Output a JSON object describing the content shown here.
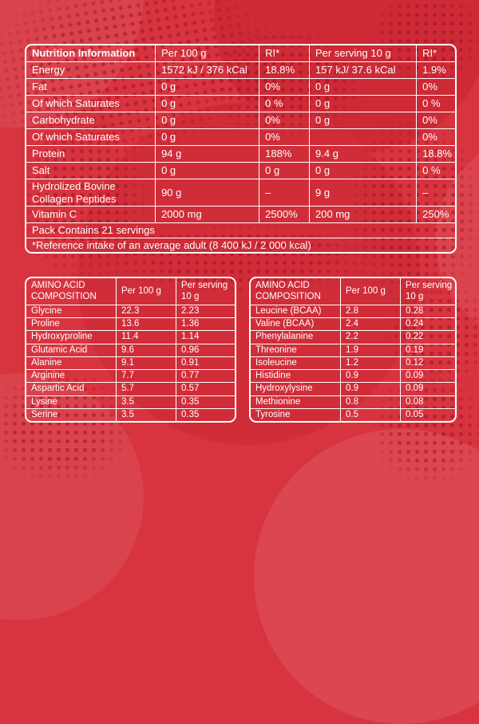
{
  "colors": {
    "background_red": "#d7343f",
    "dark_circle_red": "#cd2a36",
    "light_circle_red": "#dc4650",
    "halftone_dot_red": "#960e1e",
    "table_border": "#ffffff",
    "text": "#ffffff"
  },
  "nutrition_table": {
    "headers": [
      "Nutrition Information",
      "Per 100 g",
      "RI*",
      "Per serving 10 g",
      "RI*"
    ],
    "rows": [
      [
        "Energy",
        "1572 kJ / 376 kCal",
        "18.8%",
        "157 kJ/ 37.6 kCal",
        "1.9%"
      ],
      [
        "Fat",
        "0 g",
        "0%",
        "0 g",
        "0%"
      ],
      [
        "Of which Saturates",
        "0 g",
        "0 %",
        "0 g",
        "0 %"
      ],
      [
        "Carbohydrate",
        "0 g",
        "0%",
        "0 g",
        "0%"
      ],
      [
        "Of which Saturates",
        "0 g",
        "0%",
        "",
        "0%"
      ],
      [
        "Protein",
        "94 g",
        "188%",
        "9.4 g",
        "18.8%"
      ],
      [
        "Salt",
        "0 g",
        "0 g",
        "0 g",
        "0 %"
      ],
      [
        "Hydrolized Bovine Collagen Peptides",
        "90 g",
        "–",
        "9 g",
        "–"
      ],
      [
        "Vitamin C",
        "2000 mg",
        "2500%",
        "200 mg",
        "250%"
      ]
    ],
    "footer_rows": [
      "Pack Contains 21 servings",
      "*Reference intake of an average adult (8 400 kJ / 2 000 kcal)"
    ]
  },
  "amino_left": {
    "headers": [
      "AMINO ACID COMPOSITION",
      "Per 100 g",
      "Per serving 10 g"
    ],
    "rows": [
      [
        "Glycine",
        "22.3",
        "2.23"
      ],
      [
        "Proline",
        "13.6",
        "1.36"
      ],
      [
        "Hydroxyproline",
        "11.4",
        "1.14"
      ],
      [
        "Glutamic Acid",
        "9.6",
        "0.96"
      ],
      [
        "Alanine",
        "9.1",
        "0.91"
      ],
      [
        "Arginine",
        "7.7",
        "0.77"
      ],
      [
        "Aspartic Acid",
        "5.7",
        "0.57"
      ],
      [
        "Lysine",
        "3.5",
        "0.35"
      ],
      [
        "Serine",
        "3.5",
        "0.35"
      ]
    ]
  },
  "amino_right": {
    "headers": [
      "AMINO ACID COMPOSITION",
      "Per 100 g",
      "Per serving 10 g"
    ],
    "rows": [
      [
        "Leucine (BCAA)",
        "2.8",
        "0.28"
      ],
      [
        "Valine (BCAA)",
        "2.4",
        "0.24"
      ],
      [
        "Phenylalanine",
        "2.2",
        "0.22"
      ],
      [
        "Threonine",
        "1.9",
        "0.19"
      ],
      [
        "Isoleucine",
        "1.2",
        "0.12"
      ],
      [
        "Histidine",
        "0.9",
        "0.09"
      ],
      [
        "Hydroxylysine",
        "0.9",
        "0.09"
      ],
      [
        "Methionine",
        "0.8",
        "0.08"
      ],
      [
        "Tyrosine",
        "0.5",
        "0.05"
      ]
    ]
  }
}
